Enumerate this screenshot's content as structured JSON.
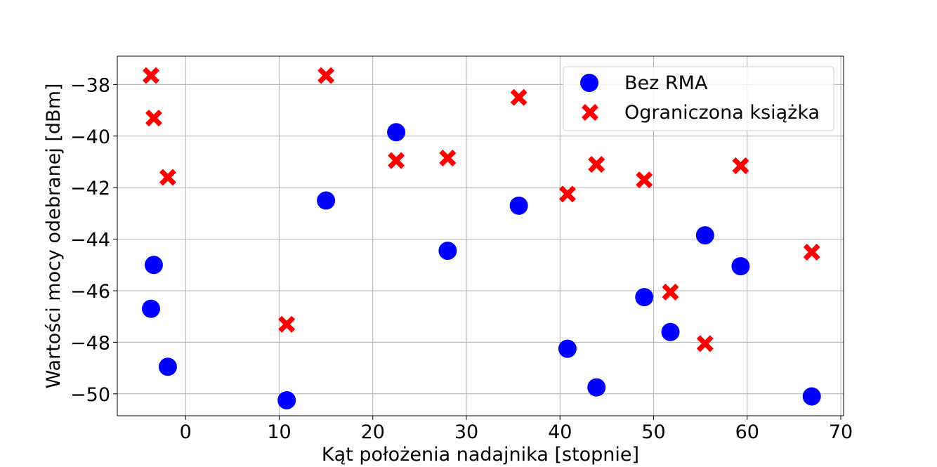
{
  "chart_data": {
    "type": "scatter",
    "title": "",
    "xlabel": "Kąt położenia nadajnika [stopnie]",
    "ylabel": "Wartości mocy odebranej [dBm]",
    "xlim": [
      -7.3,
      70.3
    ],
    "ylim": [
      -50.85,
      -36.9
    ],
    "xticks": [
      0,
      10,
      20,
      30,
      40,
      50,
      60,
      70
    ],
    "yticks": [
      -50,
      -48,
      -46,
      -44,
      -42,
      -40,
      -38
    ],
    "xtick_labels": [
      "0",
      "10",
      "20",
      "30",
      "40",
      "50",
      "60",
      "70"
    ],
    "ytick_labels": [
      "−50",
      "−48",
      "−46",
      "−44",
      "−42",
      "−40",
      "−38"
    ],
    "grid": true,
    "legend_position": "top-right",
    "series": [
      {
        "name": "Bez RMA",
        "marker": "circle",
        "color": "#0000ff",
        "points": [
          [
            -3.7,
            -46.7
          ],
          [
            -3.4,
            -45.0
          ],
          [
            -1.9,
            -48.95
          ],
          [
            10.8,
            -50.25
          ],
          [
            15.0,
            -42.5
          ],
          [
            22.5,
            -39.85
          ],
          [
            28.0,
            -44.45
          ],
          [
            35.6,
            -42.7
          ],
          [
            40.8,
            -48.25
          ],
          [
            43.9,
            -49.75
          ],
          [
            49.0,
            -46.25
          ],
          [
            51.8,
            -47.6
          ],
          [
            55.5,
            -43.85
          ],
          [
            59.3,
            -45.05
          ],
          [
            66.9,
            -50.1
          ]
        ]
      },
      {
        "name": "Ograniczona książka",
        "marker": "x",
        "color": "#ff0000",
        "points": [
          [
            -3.7,
            -37.65
          ],
          [
            -3.4,
            -39.3
          ],
          [
            -1.9,
            -41.6
          ],
          [
            10.8,
            -47.3
          ],
          [
            15.0,
            -37.65
          ],
          [
            22.5,
            -40.95
          ],
          [
            28.0,
            -40.85
          ],
          [
            35.6,
            -38.5
          ],
          [
            40.8,
            -42.25
          ],
          [
            43.9,
            -41.1
          ],
          [
            49.0,
            -41.7
          ],
          [
            51.8,
            -46.05
          ],
          [
            55.5,
            -48.05
          ],
          [
            59.3,
            -41.15
          ],
          [
            66.9,
            -44.5
          ]
        ]
      }
    ]
  }
}
